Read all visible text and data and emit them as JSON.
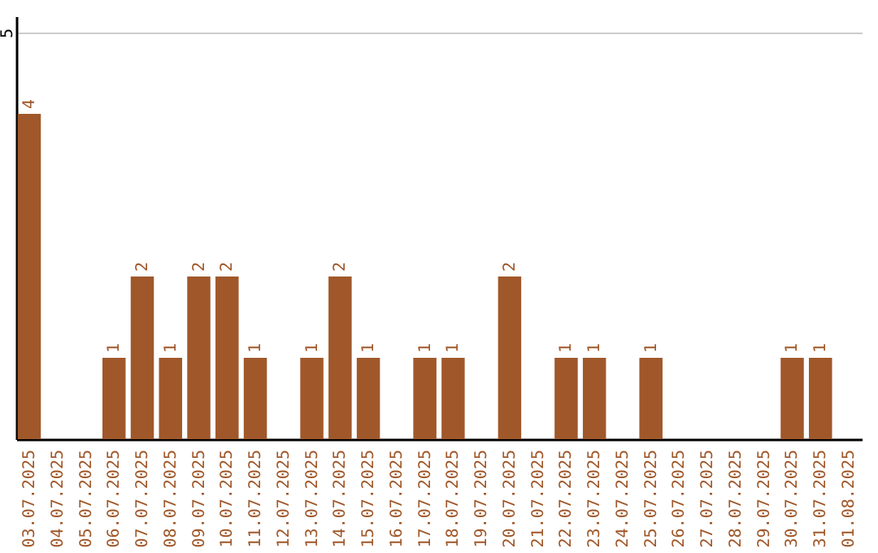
{
  "chart_data": {
    "type": "bar",
    "categories": [
      "03.07.2025",
      "04.07.2025",
      "05.07.2025",
      "06.07.2025",
      "07.07.2025",
      "08.07.2025",
      "09.07.2025",
      "10.07.2025",
      "11.07.2025",
      "12.07.2025",
      "13.07.2025",
      "14.07.2025",
      "15.07.2025",
      "16.07.2025",
      "17.07.2025",
      "18.07.2025",
      "19.07.2025",
      "20.07.2025",
      "21.07.2025",
      "22.07.2025",
      "23.07.2025",
      "24.07.2025",
      "25.07.2025",
      "26.07.2025",
      "27.07.2025",
      "28.07.2025",
      "29.07.2025",
      "30.07.2025",
      "31.07.2025",
      "01.08.2025"
    ],
    "values": [
      4,
      0,
      0,
      1,
      2,
      1,
      2,
      2,
      1,
      0,
      1,
      2,
      1,
      0,
      1,
      1,
      0,
      2,
      0,
      1,
      1,
      0,
      1,
      0,
      0,
      0,
      0,
      1,
      1,
      0
    ],
    "value_labels": [
      "4",
      null,
      null,
      "1",
      "2",
      "1",
      "2",
      "2",
      "1",
      null,
      "1",
      "2",
      "1",
      null,
      "1",
      "1",
      null,
      "2",
      null,
      "1",
      "1",
      null,
      "1",
      null,
      null,
      null,
      null,
      "1",
      "1",
      null
    ],
    "color": "#a0582a",
    "ylim": [
      0,
      5.2
    ],
    "yticks": [
      5
    ],
    "grid": "y"
  }
}
